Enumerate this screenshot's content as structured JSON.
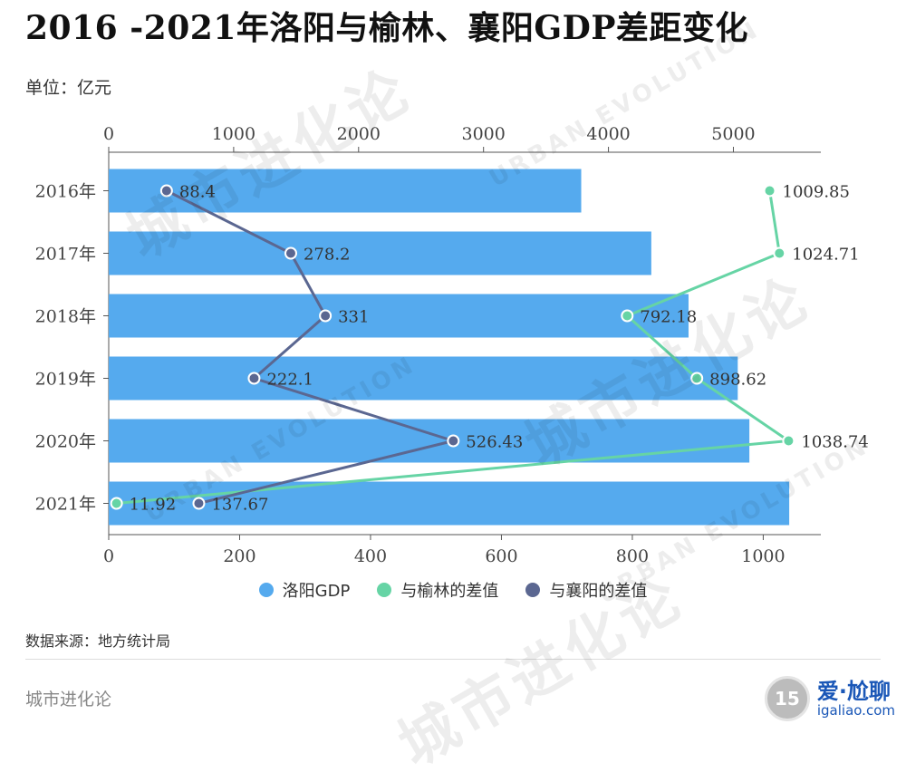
{
  "title": "2016 -2021年洛阳与榆林、襄阳GDP差距变化",
  "unit_label": "单位：亿元",
  "source_label": "数据来源：地方统计局",
  "brand": "城市进化论",
  "watermark": {
    "cn": "城市进化论",
    "en": "URBAN EVOLUTION"
  },
  "corner": {
    "logo": "15",
    "name": "爱·尬聊",
    "site": "igaliao.com"
  },
  "colors": {
    "bar": "#55aaee",
    "yulin": "#66d4a5",
    "xiangyang": "#5b6791",
    "axis": "#555555"
  },
  "chart_data": {
    "type": "bar+line",
    "title": "2016 -2021年洛阳与榆林、襄阳GDP差距变化",
    "categories": [
      "2016年",
      "2017年",
      "2018年",
      "2019年",
      "2020年",
      "2021年"
    ],
    "series": [
      {
        "name": "洛阳GDP",
        "type": "bar",
        "axis": "top",
        "values": [
          3782,
          4343,
          4641,
          5035,
          5128,
          5447
        ]
      },
      {
        "name": "与榆林的差值",
        "type": "line",
        "axis": "bottom",
        "values": [
          1009.85,
          1024.71,
          792.18,
          898.62,
          1038.74,
          11.92
        ],
        "labels": [
          "1009.85",
          "1024.71",
          "792.18",
          "898.62",
          "1038.74",
          "11.92"
        ]
      },
      {
        "name": "与襄阳的差值",
        "type": "line",
        "axis": "bottom",
        "values": [
          88.4,
          278.2,
          331,
          222.1,
          526.43,
          137.67
        ],
        "labels": [
          "88.4",
          "278.2",
          "331",
          "222.1",
          "526.43",
          "137.67"
        ]
      }
    ],
    "top_axis": {
      "range": [
        0,
        5700
      ],
      "ticks": [
        0,
        1000,
        2000,
        3000,
        4000,
        5000
      ],
      "tick_labels": [
        "0",
        "1000",
        "2000",
        "3000",
        "4000",
        "5000"
      ]
    },
    "bottom_axis": {
      "range": [
        0,
        1088
      ],
      "ticks": [
        0,
        200,
        400,
        600,
        800,
        1000
      ],
      "tick_labels": [
        "0",
        "200",
        "400",
        "600",
        "800",
        "1000"
      ]
    },
    "legend_position": "bottom"
  }
}
